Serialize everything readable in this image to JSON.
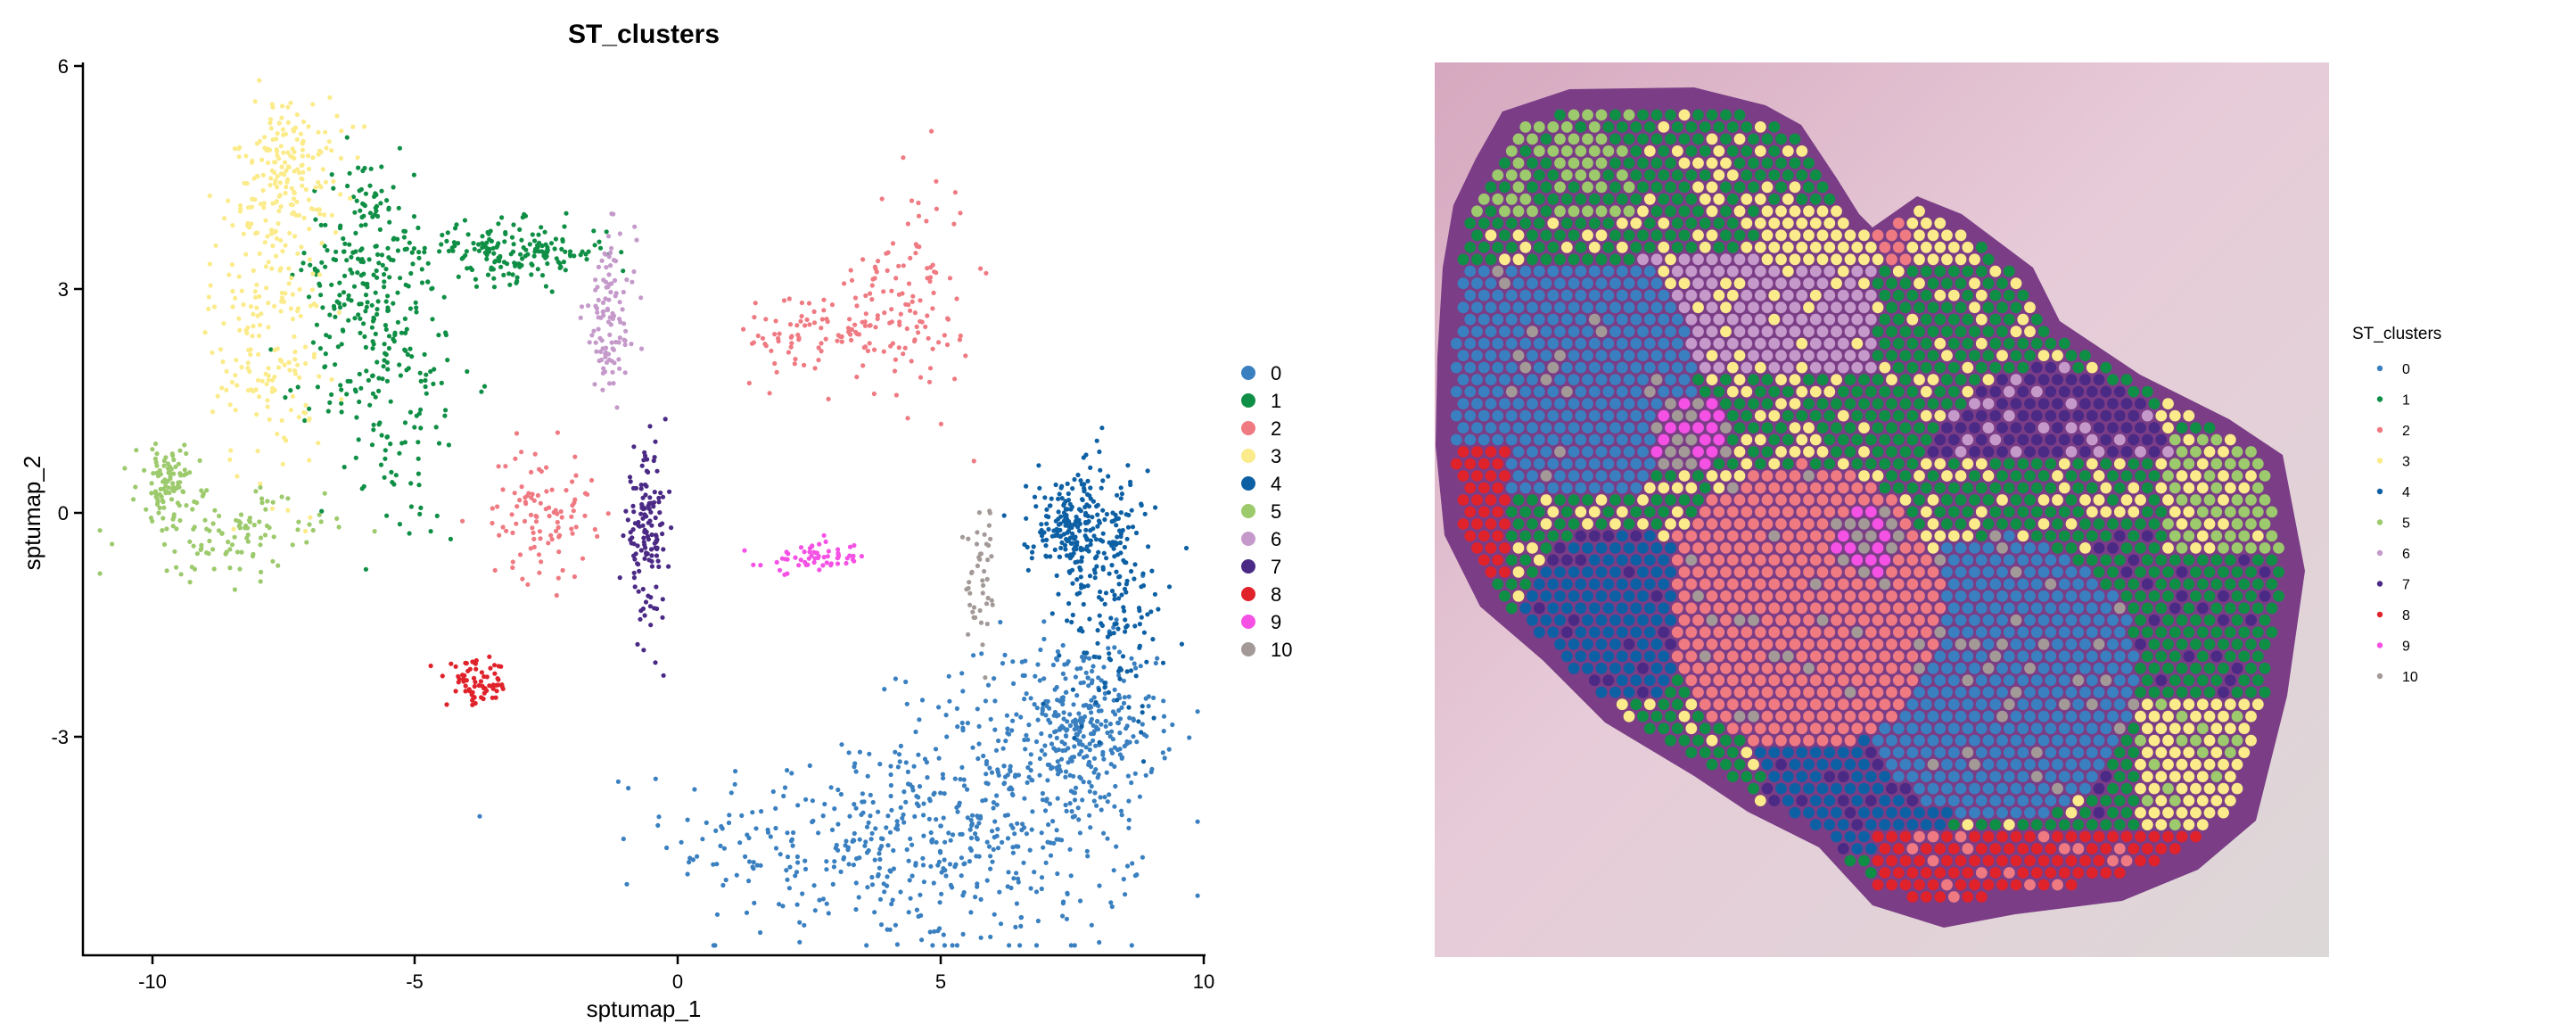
{
  "umap": {
    "title": "ST_clusters",
    "xlabel": "sptumap_1",
    "ylabel": "sptumap_2",
    "xticks": [
      "-10",
      "-5",
      "0",
      "5",
      "10"
    ],
    "yticks": [
      "6",
      "3",
      "0",
      "-3"
    ]
  },
  "spatial": {
    "legend_title": "ST_clusters"
  },
  "clusters": [
    {
      "label": "0",
      "color": "#3a80c0"
    },
    {
      "label": "1",
      "color": "#0f8f45"
    },
    {
      "label": "2",
      "color": "#ef7a82"
    },
    {
      "label": "3",
      "color": "#fbeb8a"
    },
    {
      "label": "4",
      "color": "#0e60a4"
    },
    {
      "label": "5",
      "color": "#9cca6c"
    },
    {
      "label": "6",
      "color": "#c59acb"
    },
    {
      "label": "7",
      "color": "#4b2a86"
    },
    {
      "label": "8",
      "color": "#e0222b"
    },
    {
      "label": "9",
      "color": "#f552e5"
    },
    {
      "label": "10",
      "color": "#a39a98"
    }
  ],
  "chart_data": [
    {
      "type": "scatter",
      "title": "ST_clusters",
      "xlabel": "sptumap_1",
      "ylabel": "sptumap_2",
      "xlim": [
        -11.3,
        10.2
      ],
      "ylim": [
        -6,
        6
      ],
      "legend": "right",
      "grid": false,
      "clusters": [
        {
          "label": "0",
          "n": 900,
          "regions": [
            {
              "cx": 3.5,
              "cy": -4.4,
              "sx": 1.8,
              "sy": 0.7
            },
            {
              "cx": 6.3,
              "cy": -4.0,
              "sx": 1.3,
              "sy": 1.0
            },
            {
              "cx": 7.7,
              "cy": -2.9,
              "sx": 0.7,
              "sy": 0.6
            }
          ]
        },
        {
          "label": "1",
          "n": 520,
          "regions": [
            {
              "cx": -5.4,
              "cy": 1.9,
              "sx": 0.75,
              "sy": 1.2
            },
            {
              "cx": -6.0,
              "cy": 3.3,
              "sx": 0.5,
              "sy": 0.8
            },
            {
              "cx": -3.1,
              "cy": 3.5,
              "sx": 0.9,
              "sy": 0.2
            }
          ]
        },
        {
          "label": "2",
          "n": 300,
          "regions": [
            {
              "cx": 4.5,
              "cy": 3.0,
              "sx": 0.55,
              "sy": 0.8
            },
            {
              "cx": 2.8,
              "cy": 2.4,
              "sx": 0.9,
              "sy": 0.3
            },
            {
              "cx": -2.6,
              "cy": 0.0,
              "sx": 0.5,
              "sy": 0.45
            }
          ]
        },
        {
          "label": "3",
          "n": 360,
          "regions": [
            {
              "cx": -7.8,
              "cy": 2.4,
              "sx": 0.55,
              "sy": 1.0
            },
            {
              "cx": -7.4,
              "cy": 4.6,
              "sx": 0.5,
              "sy": 0.5
            }
          ]
        },
        {
          "label": "4",
          "n": 380,
          "regions": [
            {
              "cx": 8.3,
              "cy": -1.0,
              "sx": 0.5,
              "sy": 0.9
            },
            {
              "cx": 7.5,
              "cy": -0.2,
              "sx": 0.4,
              "sy": 0.35
            }
          ]
        },
        {
          "label": "5",
          "n": 200,
          "regions": [
            {
              "cx": -8.5,
              "cy": -0.3,
              "sx": 0.9,
              "sy": 0.3
            },
            {
              "cx": -9.7,
              "cy": 0.4,
              "sx": 0.3,
              "sy": 0.25
            }
          ]
        },
        {
          "label": "6",
          "n": 110,
          "regions": [
            {
              "cx": -1.3,
              "cy": 2.6,
              "sx": 0.25,
              "sy": 0.55
            }
          ]
        },
        {
          "label": "7",
          "n": 140,
          "regions": [
            {
              "cx": -0.6,
              "cy": -0.3,
              "sx": 0.2,
              "sy": 0.55
            }
          ]
        },
        {
          "label": "8",
          "n": 70,
          "regions": [
            {
              "cx": -3.8,
              "cy": -2.3,
              "sx": 0.3,
              "sy": 0.15
            }
          ]
        },
        {
          "label": "9",
          "n": 60,
          "regions": [
            {
              "cx": 2.6,
              "cy": -0.6,
              "sx": 0.5,
              "sy": 0.1
            }
          ]
        },
        {
          "label": "10",
          "n": 45,
          "regions": [
            {
              "cx": 5.8,
              "cy": -0.9,
              "sx": 0.15,
              "sy": 0.5
            }
          ]
        }
      ]
    },
    {
      "type": "scatter",
      "subtype": "spatial-spot-map",
      "legend_title": "ST_clusters",
      "legend": "right",
      "clusters": [
        "0",
        "1",
        "2",
        "3",
        "4",
        "5",
        "6",
        "7",
        "8",
        "9",
        "10"
      ]
    }
  ]
}
